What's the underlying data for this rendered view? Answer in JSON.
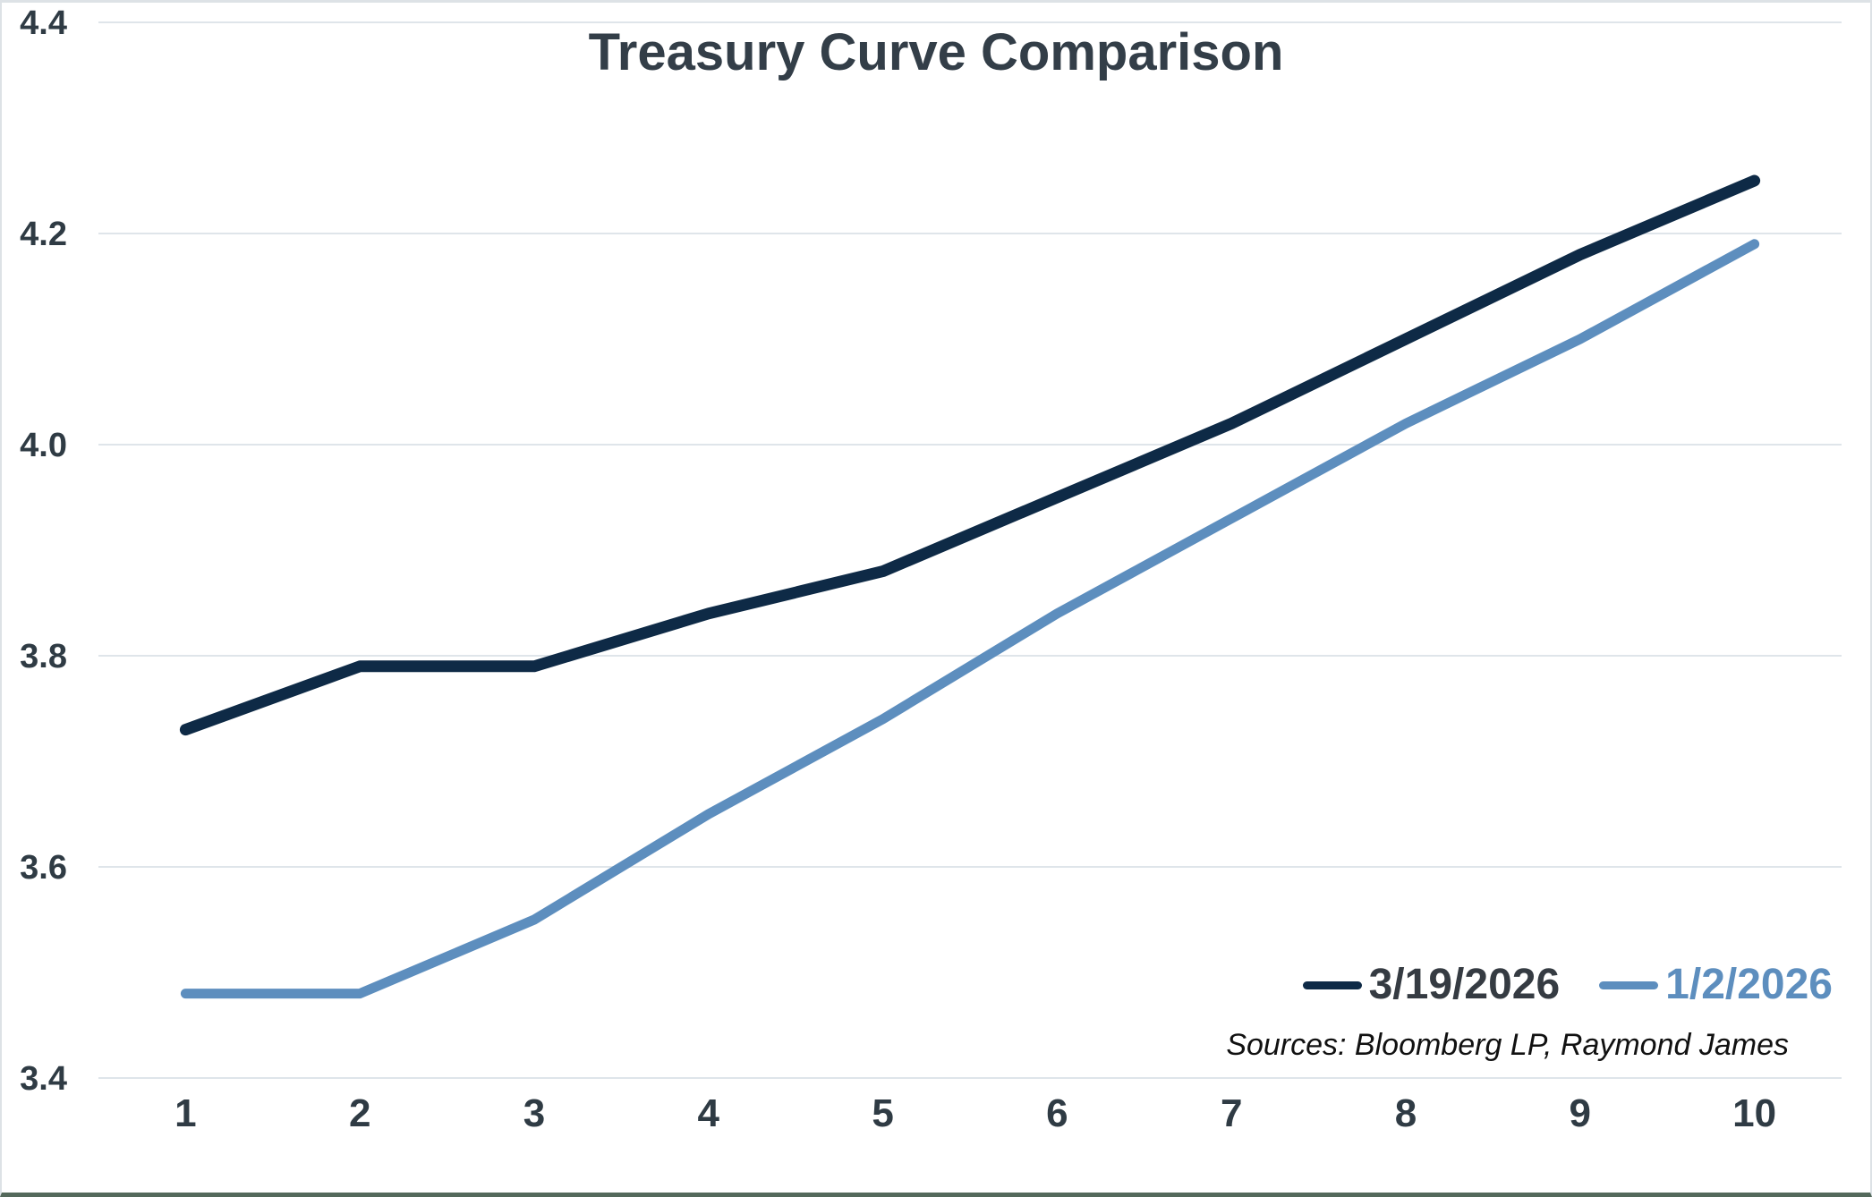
{
  "chart_data": {
    "type": "line",
    "title": "Treasury Curve Comparison",
    "x": [
      1,
      2,
      3,
      4,
      5,
      6,
      7,
      8,
      9,
      10
    ],
    "xlabel": "",
    "ylabel": "",
    "ylim": [
      3.4,
      4.4
    ],
    "ytick_labels": [
      "3.4",
      "3.6",
      "3.8",
      "4.0",
      "4.2",
      "4.4"
    ],
    "grid": "horizontal",
    "legend_position": "inside-bottom-right",
    "series": [
      {
        "name": "3/19/2026",
        "color": "#0e2a46",
        "values": [
          3.73,
          3.79,
          3.79,
          3.84,
          3.88,
          3.95,
          4.02,
          4.1,
          4.18,
          4.25
        ]
      },
      {
        "name": "1/2/2026",
        "color": "#5d8ebe",
        "values": [
          3.48,
          3.48,
          3.55,
          3.65,
          3.74,
          3.84,
          3.93,
          4.02,
          4.1,
          4.19
        ]
      }
    ],
    "source_note": "Sources: Bloomberg LP, Raymond James"
  },
  "colors": {
    "background": "#ffffff",
    "gridline": "#dfe5ea",
    "axis_label": "#2f3b44",
    "title": "#333e48",
    "legend_dark_label": "#353b42",
    "source_text": "#111111",
    "border": "#dde2e6",
    "bottom_edge": "#54695b"
  }
}
